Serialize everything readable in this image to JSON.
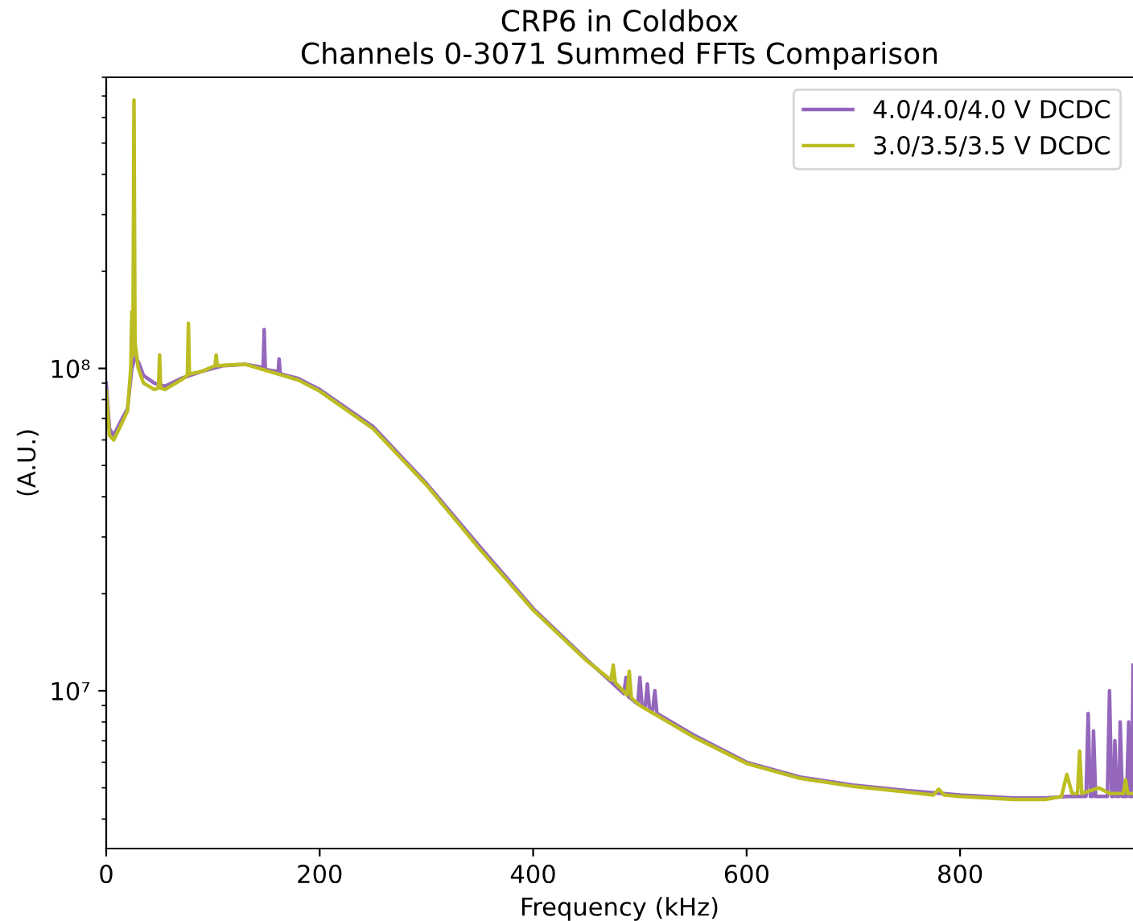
{
  "chart_data": {
    "type": "line",
    "title": "CRP6 in Coldbox",
    "subtitle": "Channels 0-3071 Summed FFTs Comparison",
    "xlabel": "Frequency (kHz)",
    "ylabel": "(A.U.)",
    "log": "y",
    "xlim": [
      0,
      962
    ],
    "xticks": [
      0,
      200,
      400,
      600,
      800
    ],
    "ylim": [
      3240000,
      800000000
    ],
    "yticks": [
      {
        "value": 10000000,
        "label": "10⁷"
      },
      {
        "value": 100000000,
        "label": "10⁸"
      }
    ],
    "legend": "top right",
    "grid": false,
    "line_style": "solid",
    "marker": "none",
    "series": [
      {
        "name": "4.0/4.0/4.0 V DCDC",
        "color": "#9467bd",
        "x": [
          0,
          3,
          7,
          15,
          20,
          24,
          27,
          30,
          35,
          45,
          55,
          70,
          90,
          110,
          130,
          145,
          147,
          148,
          149,
          151,
          160,
          161,
          162,
          163,
          164,
          180,
          200,
          250,
          300,
          350,
          400,
          450,
          485,
          487,
          489,
          498,
          500,
          502,
          505,
          507,
          509,
          512,
          514,
          516,
          550,
          600,
          650,
          700,
          750,
          800,
          850,
          880,
          900,
          918,
          920,
          922,
          924,
          925,
          927,
          938,
          940,
          942,
          944,
          945,
          947,
          949,
          950,
          952,
          956,
          958,
          959,
          961,
          962
        ],
        "values": [
          90000000,
          65000000,
          62000000,
          70000000,
          75000000,
          100000000,
          108000000,
          105000000,
          95000000,
          90000000,
          88000000,
          93000000,
          98000000,
          102000000,
          103000000,
          101000000,
          100000000,
          132000000,
          100000000,
          99000000,
          98000000,
          97000000,
          107000000,
          97000000,
          96000000,
          93000000,
          86000000,
          66000000,
          44000000,
          28000000,
          18000000,
          12500000,
          9800000,
          11000000,
          9600000,
          9100000,
          11000000,
          9000000,
          8900000,
          10500000,
          8800000,
          8700000,
          10000000,
          8500000,
          7300000,
          6000000,
          5400000,
          5100000,
          4900000,
          4750000,
          4650000,
          4650000,
          4700000,
          4700000,
          8500000,
          4700000,
          4700000,
          7500000,
          4700000,
          4700000,
          10000000,
          4700000,
          4700000,
          7000000,
          4700000,
          4700000,
          8000000,
          4700000,
          4700000,
          8000000,
          4700000,
          4700000,
          12000000
        ]
      },
      {
        "name": "3.0/3.5/3.5 V DCDC",
        "color": "#bcbd22",
        "x": [
          0,
          3,
          7,
          15,
          20,
          23,
          24,
          25,
          26,
          27,
          30,
          35,
          45,
          49,
          50,
          51,
          55,
          70,
          76,
          77,
          78,
          90,
          102,
          103,
          104,
          130,
          180,
          200,
          250,
          300,
          350,
          400,
          450,
          473,
          475,
          477,
          488,
          490,
          492,
          500,
          550,
          600,
          650,
          700,
          750,
          775,
          780,
          785,
          800,
          850,
          880,
          895,
          900,
          905,
          910,
          912,
          914,
          930,
          940,
          953,
          955,
          957,
          962
        ],
        "values": [
          85000000,
          62000000,
          60000000,
          68000000,
          74000000,
          100000000,
          150000000,
          110000000,
          680000000,
          120000000,
          100000000,
          90000000,
          86000000,
          87000000,
          110000000,
          87000000,
          86000000,
          92000000,
          95000000,
          138000000,
          96000000,
          98000000,
          102000000,
          110000000,
          102000000,
          103000000,
          92000000,
          85000000,
          65000000,
          43500000,
          27500000,
          17800000,
          12400000,
          10800000,
          12000000,
          10600000,
          9700000,
          11500000,
          9500000,
          9000000,
          7200000,
          5950000,
          5350000,
          5050000,
          4850000,
          4750000,
          4950000,
          4750000,
          4700000,
          4600000,
          4600000,
          4700000,
          5500000,
          4800000,
          4800000,
          6500000,
          4800000,
          5000000,
          4800000,
          4800000,
          5300000,
          4800000,
          4800000
        ]
      }
    ]
  }
}
